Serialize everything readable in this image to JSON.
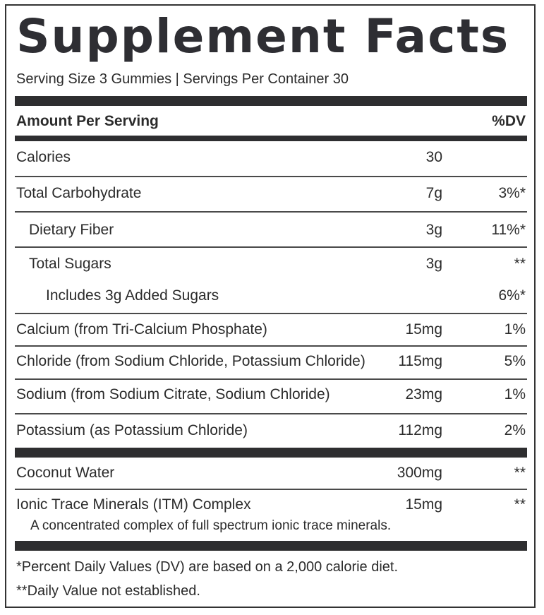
{
  "title": "Supplement Facts",
  "serving": "Serving Size 3 Gummies | Servings Per Container 30",
  "header": {
    "amount_label": "Amount Per Serving",
    "dv_label": "%DV"
  },
  "rows": [
    {
      "label": "Calories",
      "amount": "30",
      "dv": ""
    },
    {
      "label": "Total Carbohydrate",
      "amount": "7g",
      "dv": "3%*"
    },
    {
      "label": "Dietary Fiber",
      "amount": "3g",
      "dv": "11%*"
    },
    {
      "label": "Total Sugars",
      "amount": "3g",
      "dv": "**"
    },
    {
      "label": "Includes 3g Added Sugars",
      "amount": "",
      "dv": "6%*"
    },
    {
      "label": "Calcium (from Tri-Calcium Phosphate)",
      "amount": "15mg",
      "dv": "1%"
    },
    {
      "label": "Chloride (from Sodium Chloride, Potassium Chloride)",
      "amount": "115mg",
      "dv": "5%"
    },
    {
      "label": "Sodium (from Sodium Citrate, Sodium Chloride)",
      "amount": "23mg",
      "dv": "1%"
    },
    {
      "label": "Potassium (as Potassium Chloride)",
      "amount": "112mg",
      "dv": "2%"
    }
  ],
  "other_rows": [
    {
      "label": "Coconut Water",
      "amount": "300mg",
      "dv": "**"
    },
    {
      "label": "Ionic Trace Minerals (ITM) Complex",
      "amount": "15mg",
      "dv": "**"
    }
  ],
  "itm_note": "A concentrated complex of full spectrum ionic trace minerals.",
  "footnotes": [
    "*Percent Daily Values (DV) are based on a 2,000 calorie diet.",
    "**Daily Value not established."
  ]
}
